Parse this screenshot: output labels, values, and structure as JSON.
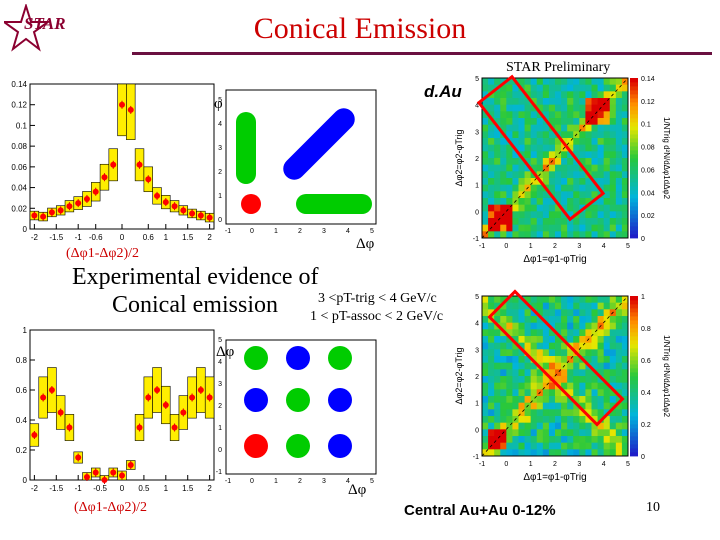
{
  "slide": {
    "title": "Conical Emission",
    "logo_text": "STAR",
    "preliminary": "STAR Preliminary",
    "dau_label": "d.Au",
    "evidence_line1": "Experimental evidence of",
    "evidence_line2": "Conical emission",
    "pt_trig_cut": "3 <pT-trig < 4 GeV/c",
    "pt_assoc_cut": "1 < pT-assoc < 2 GeV/c",
    "footer": "Central Au+Au 0-12%",
    "page_number": "10",
    "xlabel_top": "(Δφ1-Δφ2)/2",
    "xlabel_bottom": "(Δφ1-Δφ2)/2",
    "phi_label": "φ",
    "dphi_label": "Δφ",
    "map_ylabel": "Δφ2=φ2-φTrig",
    "map_xlabel": "Δφ1=φ1-φTrig",
    "map_zlabel": "1/NTrig d²N/dΔφ1dΔφ2"
  },
  "chart_data": [
    {
      "type": "bar",
      "name": "dAu projection",
      "x": [
        -2.0,
        -1.8,
        -1.6,
        -1.4,
        -1.2,
        -1.0,
        -0.8,
        -0.6,
        -0.4,
        -0.2,
        0.0,
        0.2,
        0.4,
        0.6,
        0.8,
        1.0,
        1.2,
        1.4,
        1.6,
        1.8,
        2.0
      ],
      "values": [
        0.013,
        0.012,
        0.016,
        0.018,
        0.022,
        0.025,
        0.029,
        0.036,
        0.05,
        0.062,
        0.12,
        0.115,
        0.062,
        0.048,
        0.032,
        0.026,
        0.022,
        0.018,
        0.015,
        0.013,
        0.011
      ],
      "xticks": [
        "-2",
        "-1.5",
        "-1",
        "-0.6",
        "0",
        "0.6",
        "1",
        "1.5",
        "2"
      ],
      "yticks": [
        "0",
        "0.02",
        "0.04",
        "0.06",
        "0.08",
        "0.1",
        "0.12",
        "0.14"
      ],
      "ylim": [
        0,
        0.14
      ],
      "xlim": [
        -2.1,
        2.1
      ]
    },
    {
      "type": "bar",
      "name": "AuAu projection",
      "x": [
        -2.0,
        -1.8,
        -1.6,
        -1.4,
        -1.2,
        -1.0,
        -0.8,
        -0.6,
        -0.4,
        -0.2,
        0.0,
        0.2,
        0.4,
        0.6,
        0.8,
        1.0,
        1.2,
        1.4,
        1.6,
        1.8,
        2.0
      ],
      "values": [
        0.3,
        0.55,
        0.6,
        0.45,
        0.35,
        0.15,
        0.02,
        0.05,
        0.0,
        0.05,
        0.03,
        0.1,
        0.35,
        0.55,
        0.6,
        0.5,
        0.35,
        0.45,
        0.55,
        0.6,
        0.55
      ],
      "xticks": [
        "-2",
        "-1.5",
        "-1",
        "-0.5",
        "0",
        "0.5",
        "1",
        "1.5",
        "2"
      ],
      "yticks": [
        "0",
        "0.2",
        "0.4",
        "0.6",
        "0.8",
        "1"
      ],
      "ylim": [
        0,
        1.0
      ],
      "xlim": [
        -2.1,
        2.1
      ]
    },
    {
      "type": "heatmap",
      "name": "dAu 2D correlation",
      "x_range": [
        -1,
        5
      ],
      "y_range": [
        -1,
        5
      ],
      "zticks": [
        "0",
        "0.02",
        "0.04",
        "0.06",
        "0.08",
        "0.1",
        "0.12",
        "0.14"
      ],
      "xticks": [
        "-1",
        "0",
        "1",
        "2",
        "3",
        "4",
        "5"
      ],
      "yticks": [
        "-1",
        "0",
        "1",
        "2",
        "3",
        "4",
        "5"
      ]
    },
    {
      "type": "heatmap",
      "name": "AuAu 2D correlation",
      "x_range": [
        -1,
        5
      ],
      "y_range": [
        -1,
        5
      ],
      "zticks": [
        "0",
        "0.2",
        "0.4",
        "0.6",
        "0.8",
        "1"
      ],
      "xticks": [
        "-1",
        "0",
        "1",
        "2",
        "3",
        "4",
        "5"
      ],
      "yticks": [
        "-1",
        "0",
        "1",
        "2",
        "3",
        "4",
        "5"
      ]
    }
  ],
  "schematic_top": {
    "ticks_y": [
      "0",
      "1",
      "2",
      "3",
      "4",
      "5"
    ],
    "ticks_x": [
      "-1",
      "0",
      "1",
      "2",
      "3",
      "4",
      "5"
    ],
    "shape_colors": [
      "#ff0000",
      "#00cc00",
      "#00cc00",
      "#0000ff"
    ]
  },
  "schematic_bottom": {
    "ticks_y": [
      "-1",
      "0",
      "1",
      "2",
      "3",
      "4",
      "5"
    ],
    "ticks_x": [
      "-1",
      "0",
      "1",
      "2",
      "3",
      "4",
      "5"
    ],
    "dot_colors": [
      "#00cc00",
      "#0000ff",
      "#00cc00",
      "#0000ff",
      "#00cc00",
      "#0000ff",
      "#ff0000",
      "#00cc00",
      "#0000ff"
    ]
  },
  "colors": {
    "accent": "#cc0000",
    "rule": "#6a1040",
    "box": "#ff0000"
  }
}
